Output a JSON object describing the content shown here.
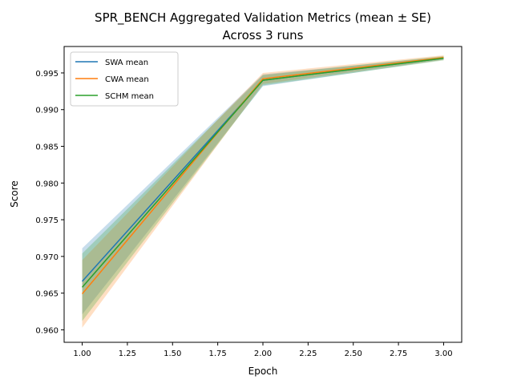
{
  "chart_data": {
    "type": "line",
    "title_line1": "SPR_BENCH Aggregated Validation Metrics (mean ± SE)",
    "title_line2": "Across 3 runs",
    "xlabel": "Epoch",
    "ylabel": "Score",
    "x": [
      1,
      2,
      3
    ],
    "xlim": [
      0.9,
      3.1
    ],
    "ylim": [
      0.9583,
      0.9986
    ],
    "xticks": [
      1.0,
      1.25,
      1.5,
      1.75,
      2.0,
      2.25,
      2.5,
      2.75,
      3.0
    ],
    "xtick_labels": [
      "1.00",
      "1.25",
      "1.50",
      "1.75",
      "2.00",
      "2.25",
      "2.50",
      "2.75",
      "3.00"
    ],
    "yticks": [
      0.96,
      0.965,
      0.97,
      0.975,
      0.98,
      0.985,
      0.99,
      0.995
    ],
    "ytick_labels": [
      "0.960",
      "0.965",
      "0.970",
      "0.975",
      "0.980",
      "0.985",
      "0.990",
      "0.995"
    ],
    "grid": false,
    "legend_position": "top-left",
    "series": [
      {
        "name": "SWA mean",
        "color": "#1f77b4",
        "values": [
          0.9666,
          0.994,
          0.997
        ],
        "se_lower": [
          0.9621,
          0.9932,
          0.9968
        ],
        "se_upper": [
          0.9711,
          0.9948,
          0.9972
        ]
      },
      {
        "name": "CWA mean",
        "color": "#ff7f0e",
        "values": [
          0.9649,
          0.9942,
          0.9971
        ],
        "se_lower": [
          0.9603,
          0.9935,
          0.9968
        ],
        "se_upper": [
          0.9695,
          0.995,
          0.9974
        ]
      },
      {
        "name": "SCHM mean",
        "color": "#2ca02c",
        "values": [
          0.9658,
          0.994,
          0.997
        ],
        "se_lower": [
          0.9612,
          0.9933,
          0.9967
        ],
        "se_upper": [
          0.9704,
          0.9947,
          0.9973
        ]
      }
    ]
  }
}
